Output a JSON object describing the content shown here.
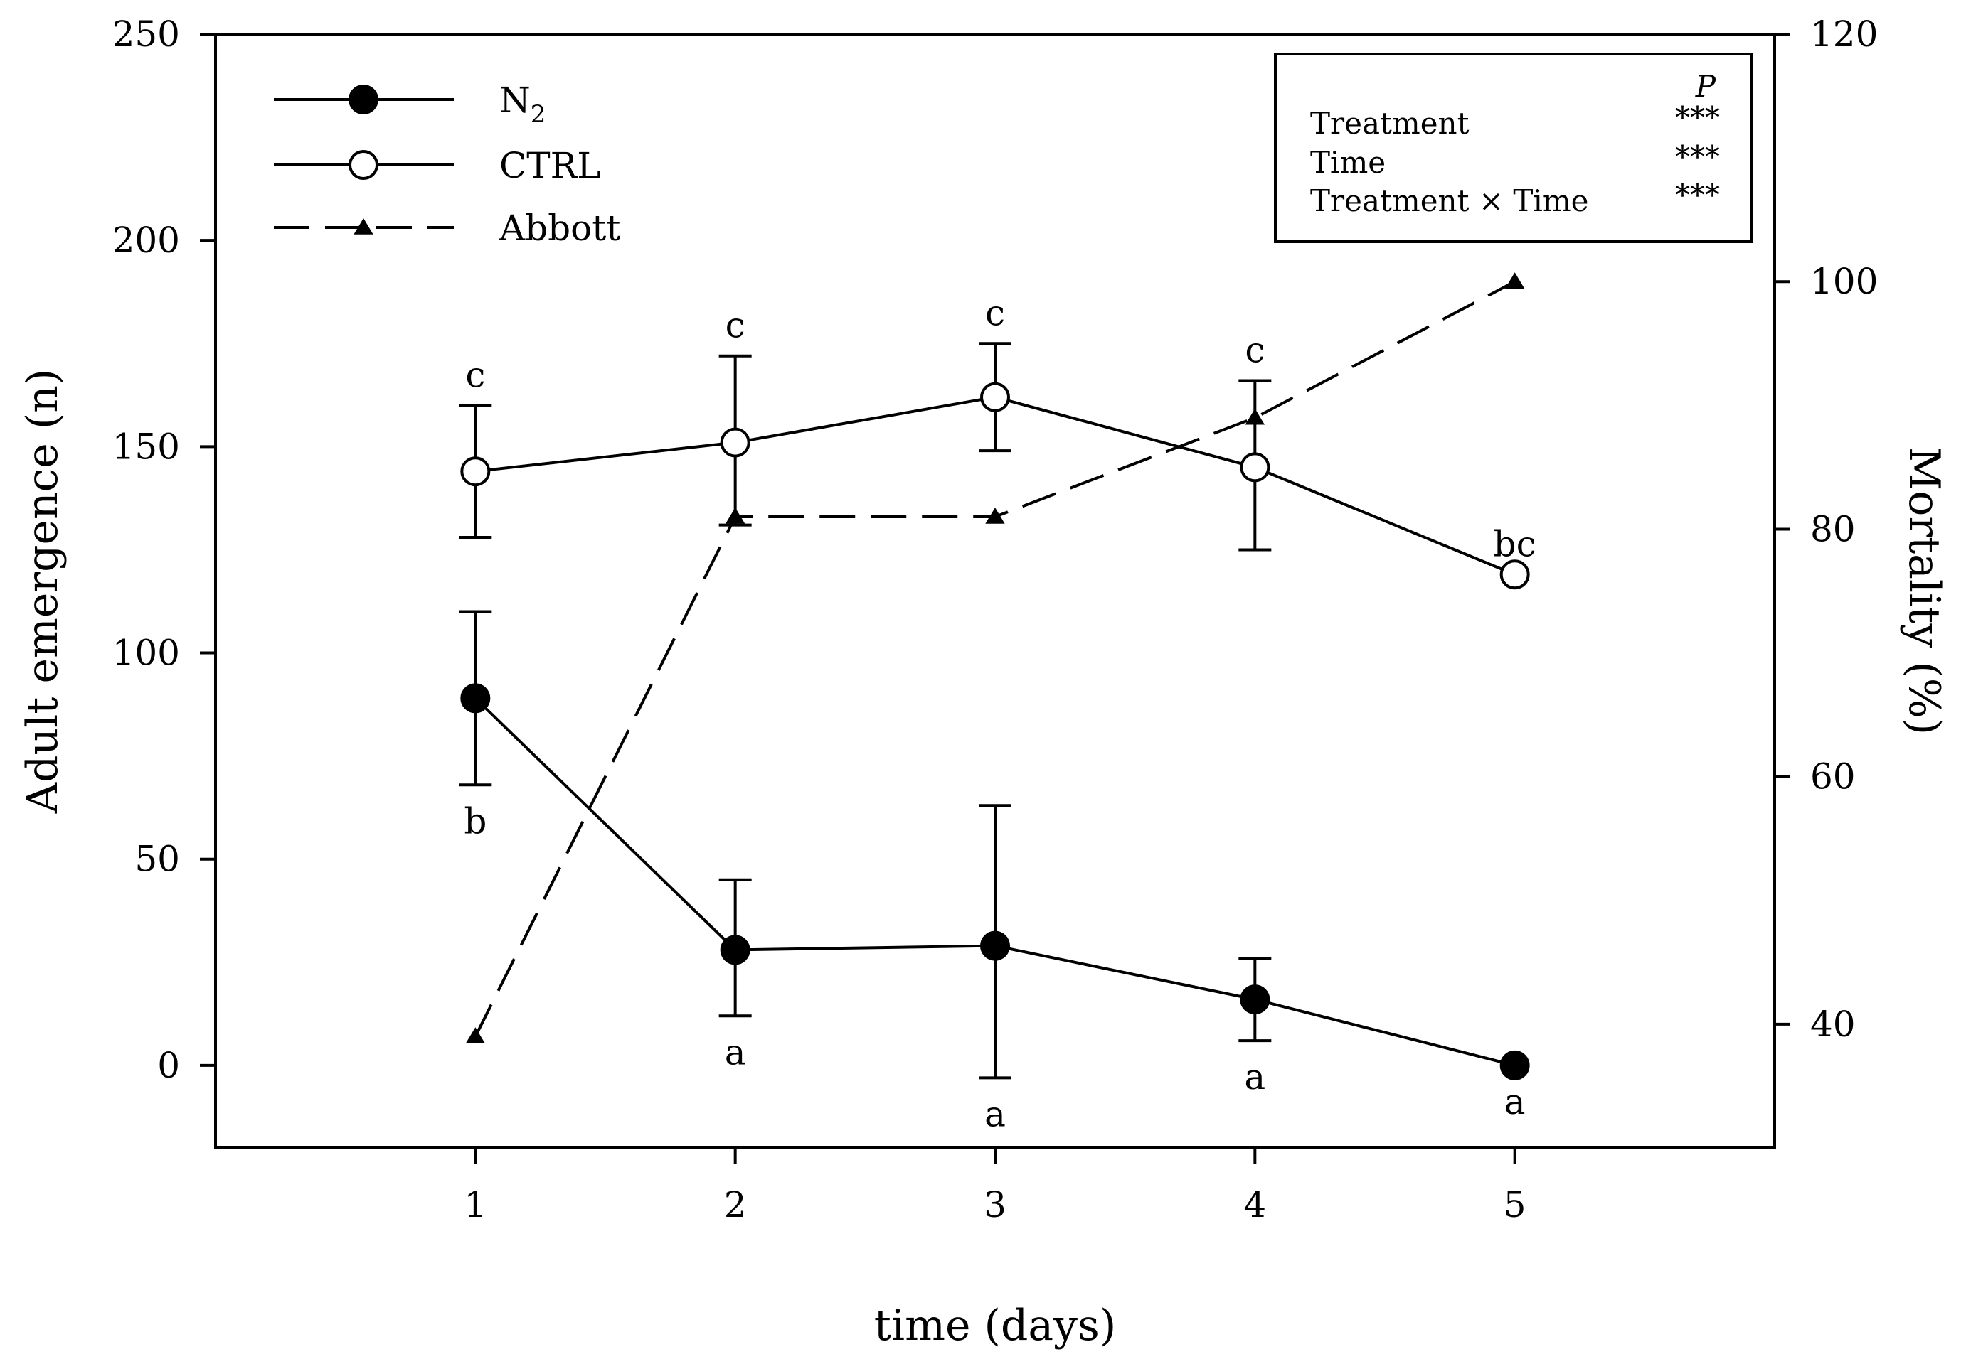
{
  "chart_data": {
    "type": "line",
    "xlabel": "time (days)",
    "ylabel_left": "Adult emergence (n)",
    "ylabel_right": "Mortality (%)",
    "x": [
      1,
      2,
      3,
      4,
      5
    ],
    "x_ticks": [
      "1",
      "2",
      "3",
      "4",
      "5"
    ],
    "x_range": [
      0,
      6
    ],
    "ylim_left": [
      -20,
      250
    ],
    "yticks_left": [
      "0",
      "50",
      "100",
      "150",
      "200",
      "250"
    ],
    "ylim_right": [
      30,
      120
    ],
    "yticks_right": [
      "40",
      "60",
      "80",
      "100",
      "120"
    ],
    "grid": false,
    "legend_position": "top-left",
    "series": [
      {
        "name": "N",
        "name_subscript": "2",
        "axis": "left",
        "marker": "filled-circle",
        "line": "solid",
        "values": [
          89,
          28,
          29,
          16,
          0
        ],
        "err_low": [
          68,
          12,
          -3,
          6,
          0
        ],
        "err_high": [
          110,
          45,
          63,
          26,
          0
        ],
        "letters": [
          "b",
          "a",
          "a",
          "a",
          "a"
        ]
      },
      {
        "name": "CTRL",
        "axis": "left",
        "marker": "open-circle",
        "line": "solid",
        "values": [
          144,
          151,
          162,
          145,
          119
        ],
        "err_low": [
          128,
          131,
          149,
          125,
          119
        ],
        "err_high": [
          160,
          172,
          175,
          166,
          119
        ],
        "letters": [
          "c",
          "c",
          "c",
          "c",
          "bc"
        ]
      },
      {
        "name": "Abbott",
        "axis": "right",
        "marker": "filled-triangle",
        "line": "dashed",
        "values": [
          39,
          81,
          81,
          89,
          100
        ]
      }
    ],
    "stats_table": {
      "header": "P",
      "rows": [
        {
          "label": "Treatment",
          "value": "***"
        },
        {
          "label": "Time",
          "value": "***"
        },
        {
          "label": "Treatment × Time",
          "value": "***"
        }
      ]
    }
  }
}
